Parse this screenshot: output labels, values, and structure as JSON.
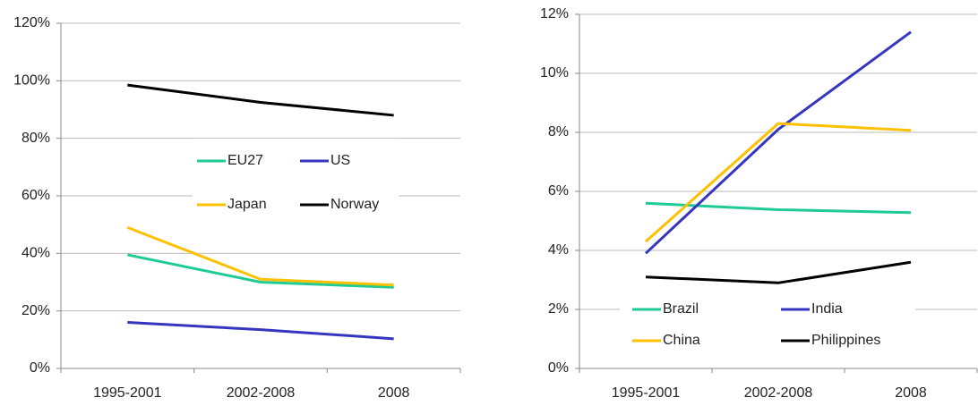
{
  "chart_data": [
    {
      "type": "line",
      "categories": [
        "1995-2001",
        "2002-2008",
        "2008"
      ],
      "series": [
        {
          "name": "EU27",
          "color": "#1ecb96",
          "values": [
            39.5,
            30,
            28.2
          ]
        },
        {
          "name": "US",
          "color": "#3535c0",
          "values": [
            16,
            13.5,
            10.3
          ]
        },
        {
          "name": "Japan",
          "color": "#ffc000",
          "values": [
            49,
            31,
            29
          ]
        },
        {
          "name": "Norway",
          "color": "#000000",
          "values": [
            98.5,
            92.5,
            88
          ]
        }
      ],
      "ylim": [
        0,
        120
      ],
      "yticks": [
        {
          "value": 0,
          "label": "0%"
        },
        {
          "value": 20,
          "label": "20%"
        },
        {
          "value": 40,
          "label": "40%"
        },
        {
          "value": 60,
          "label": "60%"
        },
        {
          "value": 80,
          "label": "80%"
        },
        {
          "value": 100,
          "label": "100%"
        },
        {
          "value": 120,
          "label": "120%"
        }
      ],
      "grid": true,
      "legend": "center"
    },
    {
      "type": "line",
      "categories": [
        "1995-2001",
        "2002-2008",
        "2008"
      ],
      "series": [
        {
          "name": "Brazil",
          "color": "#1ecb96",
          "values": [
            5.6,
            5.38,
            5.28
          ]
        },
        {
          "name": "India",
          "color": "#3535c0",
          "values": [
            3.9,
            8.1,
            11.4
          ]
        },
        {
          "name": "China",
          "color": "#ffc000",
          "values": [
            4.3,
            8.3,
            8.07
          ]
        },
        {
          "name": "Philippines",
          "color": "#000000",
          "values": [
            3.1,
            2.9,
            3.6
          ]
        }
      ],
      "ylim": [
        0,
        12
      ],
      "yticks": [
        {
          "value": 0,
          "label": "0%"
        },
        {
          "value": 2,
          "label": "2%"
        },
        {
          "value": 4,
          "label": "4%"
        },
        {
          "value": 6,
          "label": "6%"
        },
        {
          "value": 8,
          "label": "8%"
        },
        {
          "value": 10,
          "label": "10%"
        },
        {
          "value": 12,
          "label": "12%"
        }
      ],
      "grid": true,
      "legend": "lower left"
    }
  ]
}
